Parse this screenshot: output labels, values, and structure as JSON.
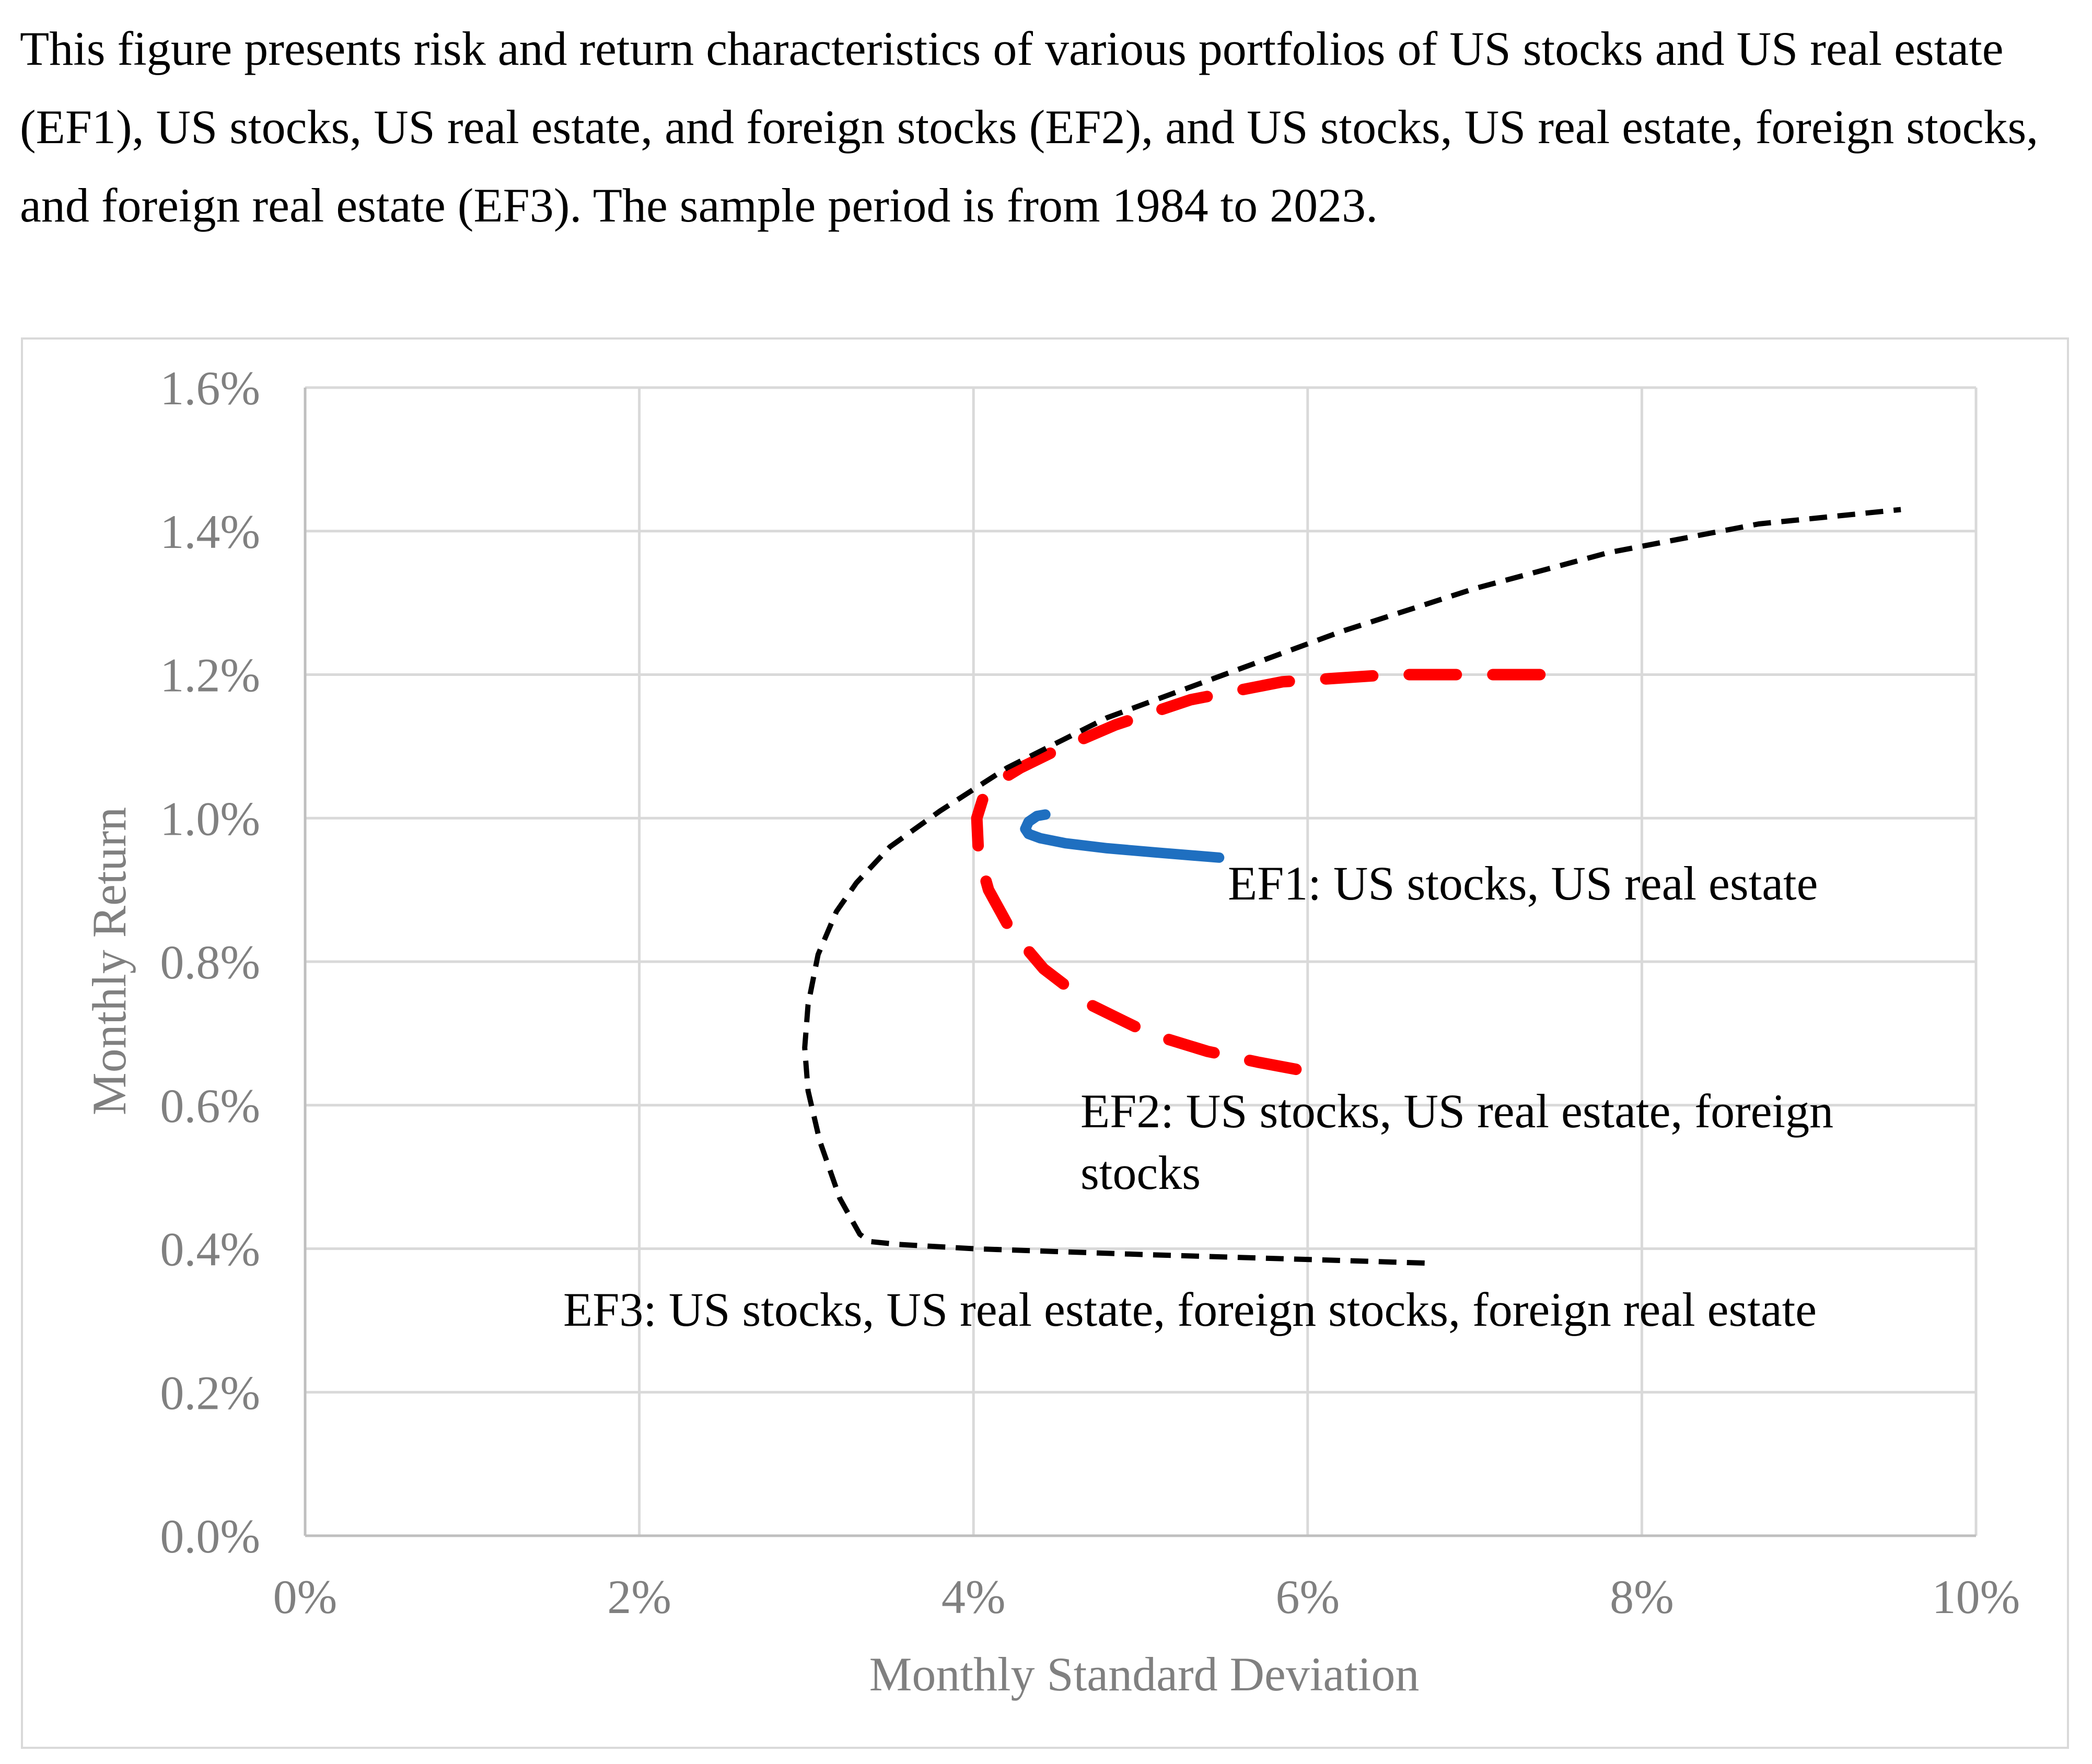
{
  "caption": "This figure presents risk and return characteristics of various portfolios of US stocks and US real estate (EF1), US stocks, US real estate, and foreign stocks (EF2), and US stocks, US real estate, foreign stocks, and foreign real estate (EF3). The sample period is from 1984 to 2023.",
  "colors": {
    "ef1": "#1f6fc0",
    "ef2": "#ff0000",
    "ef3": "#000000",
    "grid": "#d9d9d9",
    "axis_text": "#808080"
  },
  "chart_data": {
    "type": "line",
    "xlabel": "Monthly Standard Deviation",
    "ylabel": "Monthly Return",
    "xlim": [
      0,
      10
    ],
    "ylim": [
      0,
      1.6
    ],
    "x_ticks": [
      0,
      2,
      4,
      6,
      8,
      10
    ],
    "y_ticks": [
      0,
      0.2,
      0.4,
      0.6,
      0.8,
      1.0,
      1.2,
      1.4,
      1.6
    ],
    "x_tick_labels": [
      "0%",
      "2%",
      "4%",
      "6%",
      "8%",
      "10%"
    ],
    "y_tick_labels": [
      "0.0%",
      "0.2%",
      "0.4%",
      "0.6%",
      "0.8%",
      "1.0%",
      "1.2%",
      "1.4%",
      "1.6%"
    ],
    "grid": true,
    "series": [
      {
        "name": "EF1",
        "label": "EF1: US stocks, US real estate",
        "style": "solid",
        "x": [
          4.43,
          4.38,
          4.33,
          4.31,
          4.33,
          4.4,
          4.55,
          4.8,
          5.1,
          5.47
        ],
        "y": [
          1.005,
          1.003,
          0.995,
          0.985,
          0.978,
          0.972,
          0.965,
          0.958,
          0.952,
          0.945
        ]
      },
      {
        "name": "EF2",
        "label_lines": [
          "EF2: US stocks, US real estate, foreign",
          "stocks"
        ],
        "style": "dashed",
        "x": [
          5.93,
          5.7,
          5.4,
          5.05,
          4.7,
          4.42,
          4.22,
          4.09,
          4.03,
          4.02,
          4.06,
          4.14,
          4.28,
          4.5,
          4.85,
          5.3,
          5.85,
          6.5,
          7.0,
          7.4
        ],
        "y": [
          0.65,
          0.66,
          0.675,
          0.7,
          0.74,
          0.79,
          0.845,
          0.9,
          0.95,
          1.0,
          1.03,
          1.05,
          1.07,
          1.095,
          1.13,
          1.165,
          1.19,
          1.2,
          1.2,
          1.2
        ]
      },
      {
        "name": "EF3",
        "label": "EF3: US stocks, US real estate, foreign stocks, foreign real estate",
        "style": "dotted",
        "x": [
          6.7,
          6.0,
          5.0,
          4.0,
          3.55,
          3.38,
          3.32,
          3.2,
          3.08,
          3.01,
          2.99,
          3.01,
          3.07,
          3.18,
          3.3,
          3.5,
          3.8,
          4.2,
          4.8,
          5.5,
          6.2,
          7.0,
          7.8,
          8.7,
          9.55
        ],
        "y": [
          0.38,
          0.385,
          0.392,
          0.4,
          0.406,
          0.41,
          0.42,
          0.47,
          0.55,
          0.62,
          0.68,
          0.74,
          0.81,
          0.87,
          0.91,
          0.96,
          1.01,
          1.07,
          1.14,
          1.2,
          1.26,
          1.32,
          1.37,
          1.41,
          1.43
        ]
      }
    ]
  }
}
